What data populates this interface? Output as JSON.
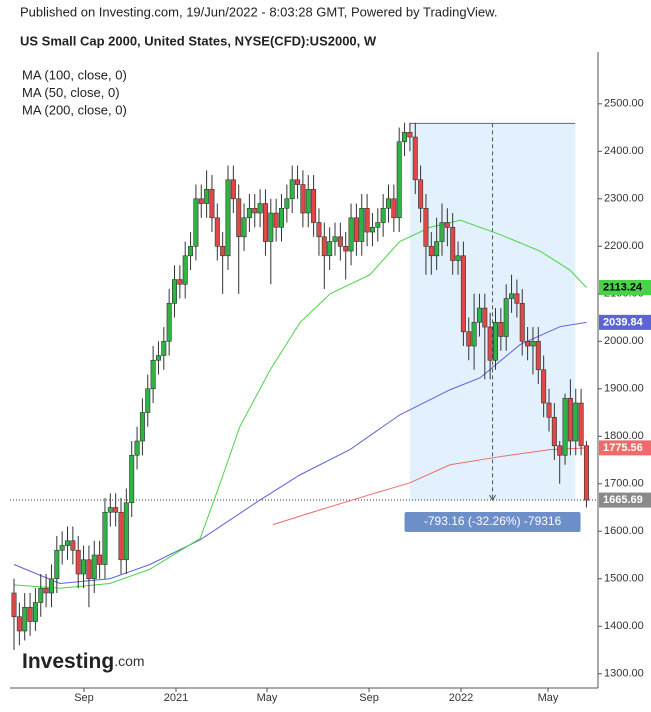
{
  "header": {
    "published": "Published on Investing.com, 19/Jun/2022 - 8:03:28 GMT, Powered by TradingView.",
    "title": "US Small Cap 2000, United States, NYSE(CFD):US2000, W"
  },
  "logo": {
    "name": "Investing",
    "suffix": ".com"
  },
  "chart_data": {
    "type": "candlestick",
    "candles": {
      "up_color": "#2fb344",
      "down_color": "#e04848",
      "open": [
        1470,
        1420,
        1390,
        1440,
        1410,
        1450,
        1480,
        1470,
        1500,
        1560,
        1570,
        1580,
        1560,
        1510,
        1540,
        1500,
        1550,
        1530,
        1640,
        1650,
        1640,
        1540,
        1660,
        1760,
        1790,
        1850,
        1900,
        1960,
        1970,
        2000,
        2080,
        2130,
        2120,
        2180,
        2200,
        2300,
        2290,
        2320,
        2260,
        2200,
        2180,
        2340,
        2300,
        2220,
        2260,
        2280,
        2270,
        2290,
        2210,
        2270,
        2240,
        2280,
        2300,
        2340,
        2330,
        2270,
        2320,
        2250,
        2220,
        2180,
        2210,
        2220,
        2200,
        2190,
        2260,
        2210,
        2280,
        2230,
        2240,
        2250,
        2280,
        2300,
        2260,
        2420,
        2440,
        2430,
        2340,
        2280,
        2200,
        2180,
        2210,
        2250,
        2240,
        2170,
        2180,
        2020,
        1990,
        2040,
        2070,
        2030,
        1960,
        2040,
        2010,
        2090,
        2100,
        2080,
        2000,
        1990,
        2000,
        1940,
        1870,
        1840,
        1780,
        1760,
        1880,
        1790,
        1870,
        1780
      ],
      "high": [
        1500,
        1450,
        1470,
        1470,
        1480,
        1510,
        1510,
        1530,
        1590,
        1600,
        1610,
        1610,
        1590,
        1570,
        1570,
        1580,
        1580,
        1670,
        1680,
        1680,
        1670,
        1690,
        1790,
        1820,
        1880,
        1930,
        1990,
        2000,
        2030,
        2110,
        2160,
        2160,
        2210,
        2230,
        2330,
        2330,
        2360,
        2350,
        2290,
        2230,
        2370,
        2370,
        2330,
        2290,
        2310,
        2310,
        2320,
        2320,
        2300,
        2300,
        2310,
        2330,
        2370,
        2370,
        2360,
        2350,
        2350,
        2280,
        2250,
        2240,
        2250,
        2250,
        2230,
        2290,
        2290,
        2310,
        2310,
        2270,
        2280,
        2310,
        2330,
        2330,
        2450,
        2460,
        2460,
        2460,
        2370,
        2310,
        2230,
        2260,
        2290,
        2280,
        2270,
        2210,
        2210,
        2050,
        2100,
        2100,
        2100,
        2060,
        2070,
        2070,
        2120,
        2140,
        2130,
        2110,
        2030,
        2030,
        2030,
        1970,
        1900,
        1870,
        1790,
        1890,
        1920,
        1900,
        1900,
        1790
      ],
      "low": [
        1350,
        1360,
        1370,
        1380,
        1390,
        1420,
        1440,
        1440,
        1470,
        1530,
        1540,
        1530,
        1480,
        1480,
        1440,
        1470,
        1500,
        1500,
        1610,
        1610,
        1510,
        1510,
        1630,
        1730,
        1760,
        1820,
        1870,
        1930,
        1940,
        1970,
        2050,
        2090,
        2090,
        2150,
        2170,
        2260,
        2260,
        2230,
        2170,
        2100,
        2150,
        2270,
        2100,
        2190,
        2230,
        2240,
        2240,
        2180,
        2120,
        2210,
        2210,
        2250,
        2270,
        2300,
        2240,
        2240,
        2220,
        2180,
        2110,
        2150,
        2180,
        2170,
        2130,
        2160,
        2180,
        2180,
        2200,
        2200,
        2210,
        2220,
        2250,
        2230,
        2230,
        2390,
        2400,
        2310,
        2250,
        2140,
        2140,
        2150,
        2180,
        2200,
        2140,
        2140,
        1990,
        1960,
        1940,
        2010,
        1920,
        1920,
        1940,
        1980,
        1980,
        2060,
        2050,
        1970,
        1960,
        1930,
        1910,
        1840,
        1810,
        1750,
        1700,
        1740,
        1760,
        1760,
        1760,
        1650
      ],
      "close": [
        1420,
        1390,
        1440,
        1410,
        1450,
        1480,
        1470,
        1500,
        1560,
        1570,
        1580,
        1560,
        1510,
        1540,
        1500,
        1550,
        1530,
        1640,
        1650,
        1640,
        1540,
        1660,
        1760,
        1790,
        1850,
        1900,
        1960,
        1970,
        2000,
        2080,
        2130,
        2120,
        2180,
        2200,
        2300,
        2290,
        2320,
        2260,
        2200,
        2180,
        2340,
        2300,
        2220,
        2260,
        2280,
        2270,
        2290,
        2210,
        2270,
        2240,
        2280,
        2300,
        2340,
        2330,
        2270,
        2320,
        2250,
        2220,
        2180,
        2210,
        2220,
        2200,
        2190,
        2260,
        2210,
        2280,
        2230,
        2240,
        2250,
        2280,
        2300,
        2260,
        2420,
        2440,
        2430,
        2340,
        2280,
        2200,
        2180,
        2210,
        2250,
        2240,
        2170,
        2180,
        2020,
        1990,
        2040,
        2070,
        2030,
        1960,
        2040,
        2010,
        2090,
        2100,
        2080,
        2000,
        1990,
        2000,
        1940,
        1870,
        1840,
        1780,
        1760,
        1880,
        1790,
        1870,
        1780,
        1665.69
      ],
      "last_color": "#8a8a8a"
    },
    "series": [
      {
        "name": "MA (100, close, 0)",
        "color": "#5b63d6",
        "x": [
          0,
          8.6,
          17.9,
          25.4,
          34.8,
          46.0,
          53.5,
          62.8,
          72.1,
          81.5,
          87.1,
          94.6,
          102.1,
          107
        ],
        "values": [
          1530,
          1490,
          1500,
          1530,
          1582,
          1666,
          1719,
          1772,
          1845,
          1898,
          1923,
          1993,
          2031,
          2039.84
        ]
      },
      {
        "name": "MA (50, close, 0)",
        "color": "#47d447",
        "x": [
          0,
          8.6,
          17.9,
          25.4,
          34.8,
          38.5,
          42.2,
          47.9,
          53.5,
          59.1,
          66.5,
          72.1,
          77.8,
          83.4,
          90.8,
          98.3,
          103.9,
          107
        ],
        "values": [
          1487,
          1480,
          1490,
          1520,
          1585,
          1700,
          1820,
          1940,
          2040,
          2100,
          2140,
          2210,
          2240,
          2255,
          2225,
          2190,
          2150,
          2113.24
        ]
      },
      {
        "name": "MA (200, close, 0)",
        "color": "#f06a6a",
        "x": [
          48.4,
          57.2,
          66.5,
          74.0,
          81.5,
          90.8,
          100.2,
          107
        ],
        "values": [
          1614,
          1645,
          1677,
          1702,
          1740,
          1757,
          1772,
          1775.56
        ]
      }
    ],
    "measure": {
      "label": "-793.16 (-32.26%) -79316",
      "start": 74.0,
      "end": 104.9,
      "from": 2458.85,
      "to": 1665.69,
      "color": "#6c8ec9"
    },
    "xlim": [
      -0.75,
      109.16
    ],
    "ylim": [
      1270,
      2588
    ],
    "xticks": [
      {
        "value": 13.08,
        "label": "Sep"
      },
      {
        "value": 30.28,
        "label": "2021"
      },
      {
        "value": 47.29,
        "label": "May"
      },
      {
        "value": 66.36,
        "label": "Sep"
      },
      {
        "value": 83.55,
        "label": "2022"
      },
      {
        "value": 99.81,
        "label": "May"
      }
    ],
    "yticks": [
      {
        "value": 1300,
        "label": "1300.00"
      },
      {
        "value": 1400,
        "label": "1400.00"
      },
      {
        "value": 1500,
        "label": "1500.00"
      },
      {
        "value": 1600,
        "label": "1600.00"
      },
      {
        "value": 1700,
        "label": "1700.00"
      },
      {
        "value": 1800,
        "label": "1800.00"
      },
      {
        "value": 1900,
        "label": "1900.00"
      },
      {
        "value": 2000,
        "label": "2000.00"
      },
      {
        "value": 2100,
        "label": "2100.00"
      },
      {
        "value": 2200,
        "label": "2200.00"
      },
      {
        "value": 2300,
        "label": "2300.00"
      },
      {
        "value": 2400,
        "label": "2400.00"
      },
      {
        "value": 2500,
        "label": "2500.00"
      }
    ]
  }
}
